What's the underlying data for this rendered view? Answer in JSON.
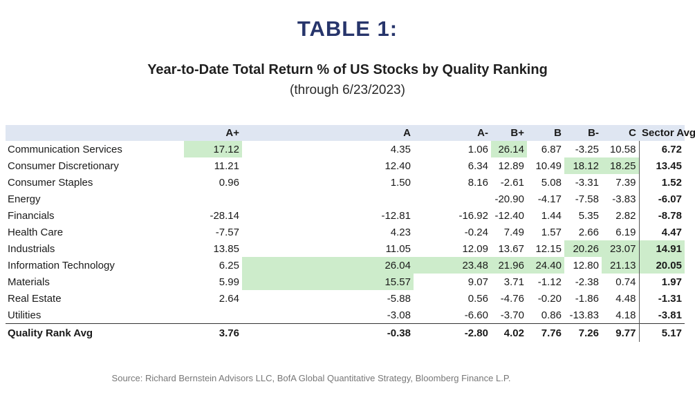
{
  "title": "TABLE 1:",
  "subtitle": "Year-to-Date Total Return % of US Stocks by Quality Ranking",
  "subtitle_date": "(through 6/23/2023)",
  "columns": [
    "",
    "A+",
    "A",
    "A-",
    "B+",
    "B",
    "B-",
    "C",
    "Sector Avg"
  ],
  "rows": [
    {
      "sector": "Communication Services",
      "values": [
        "17.12",
        "4.35",
        "1.06",
        "26.14",
        "6.87",
        "-3.25",
        "10.58",
        "6.72"
      ],
      "highlight": [
        0,
        3
      ]
    },
    {
      "sector": "Consumer Discretionary",
      "values": [
        "11.21",
        "12.40",
        "6.34",
        "12.89",
        "10.49",
        "18.12",
        "18.25",
        "13.45"
      ],
      "highlight": [
        5,
        6
      ]
    },
    {
      "sector": "Consumer Staples",
      "values": [
        "0.96",
        "1.50",
        "8.16",
        "-2.61",
        "5.08",
        "-3.31",
        "7.39",
        "1.52"
      ],
      "highlight": []
    },
    {
      "sector": "Energy",
      "values": [
        "",
        "",
        "",
        "-20.90",
        "-4.17",
        "-7.58",
        "-3.83",
        "-6.07"
      ],
      "highlight": []
    },
    {
      "sector": "Financials",
      "values": [
        "-28.14",
        "-12.81",
        "-16.92",
        "-12.40",
        "1.44",
        "5.35",
        "2.82",
        "-8.78"
      ],
      "highlight": []
    },
    {
      "sector": "Health Care",
      "values": [
        "-7.57",
        "4.23",
        "-0.24",
        "7.49",
        "1.57",
        "2.66",
        "6.19",
        "4.47"
      ],
      "highlight": []
    },
    {
      "sector": "Industrials",
      "values": [
        "13.85",
        "11.05",
        "12.09",
        "13.67",
        "12.15",
        "20.26",
        "23.07",
        "14.91"
      ],
      "highlight": [
        5,
        6,
        7
      ]
    },
    {
      "sector": "Information Technology",
      "values": [
        "6.25",
        "26.04",
        "23.48",
        "21.96",
        "24.40",
        "12.80",
        "21.13",
        "20.05"
      ],
      "highlight": [
        1,
        2,
        3,
        4,
        6,
        7
      ]
    },
    {
      "sector": "Materials",
      "values": [
        "5.99",
        "15.57",
        "9.07",
        "3.71",
        "-1.12",
        "-2.38",
        "0.74",
        "1.97"
      ],
      "highlight": [
        1
      ]
    },
    {
      "sector": "Real Estate",
      "values": [
        "2.64",
        "-5.88",
        "0.56",
        "-4.76",
        "-0.20",
        "-1.86",
        "4.48",
        "-1.31"
      ],
      "highlight": []
    },
    {
      "sector": "Utilities",
      "values": [
        "",
        "-3.08",
        "-6.60",
        "-3.70",
        "0.86",
        "-13.83",
        "4.18",
        "-3.81"
      ],
      "highlight": []
    }
  ],
  "avg_row": {
    "label": "Quality Rank Avg",
    "values": [
      "3.76",
      "-0.38",
      "-2.80",
      "4.02",
      "7.76",
      "7.26",
      "9.77",
      "5.17"
    ]
  },
  "colors": {
    "title": "#27356b",
    "header_bg": "#dfe6f2",
    "highlight": "#cdeccb"
  },
  "source": "Source: Richard Bernstein Advisors LLC, BofA Global Quantitative Strategy, Bloomberg Finance L.P."
}
